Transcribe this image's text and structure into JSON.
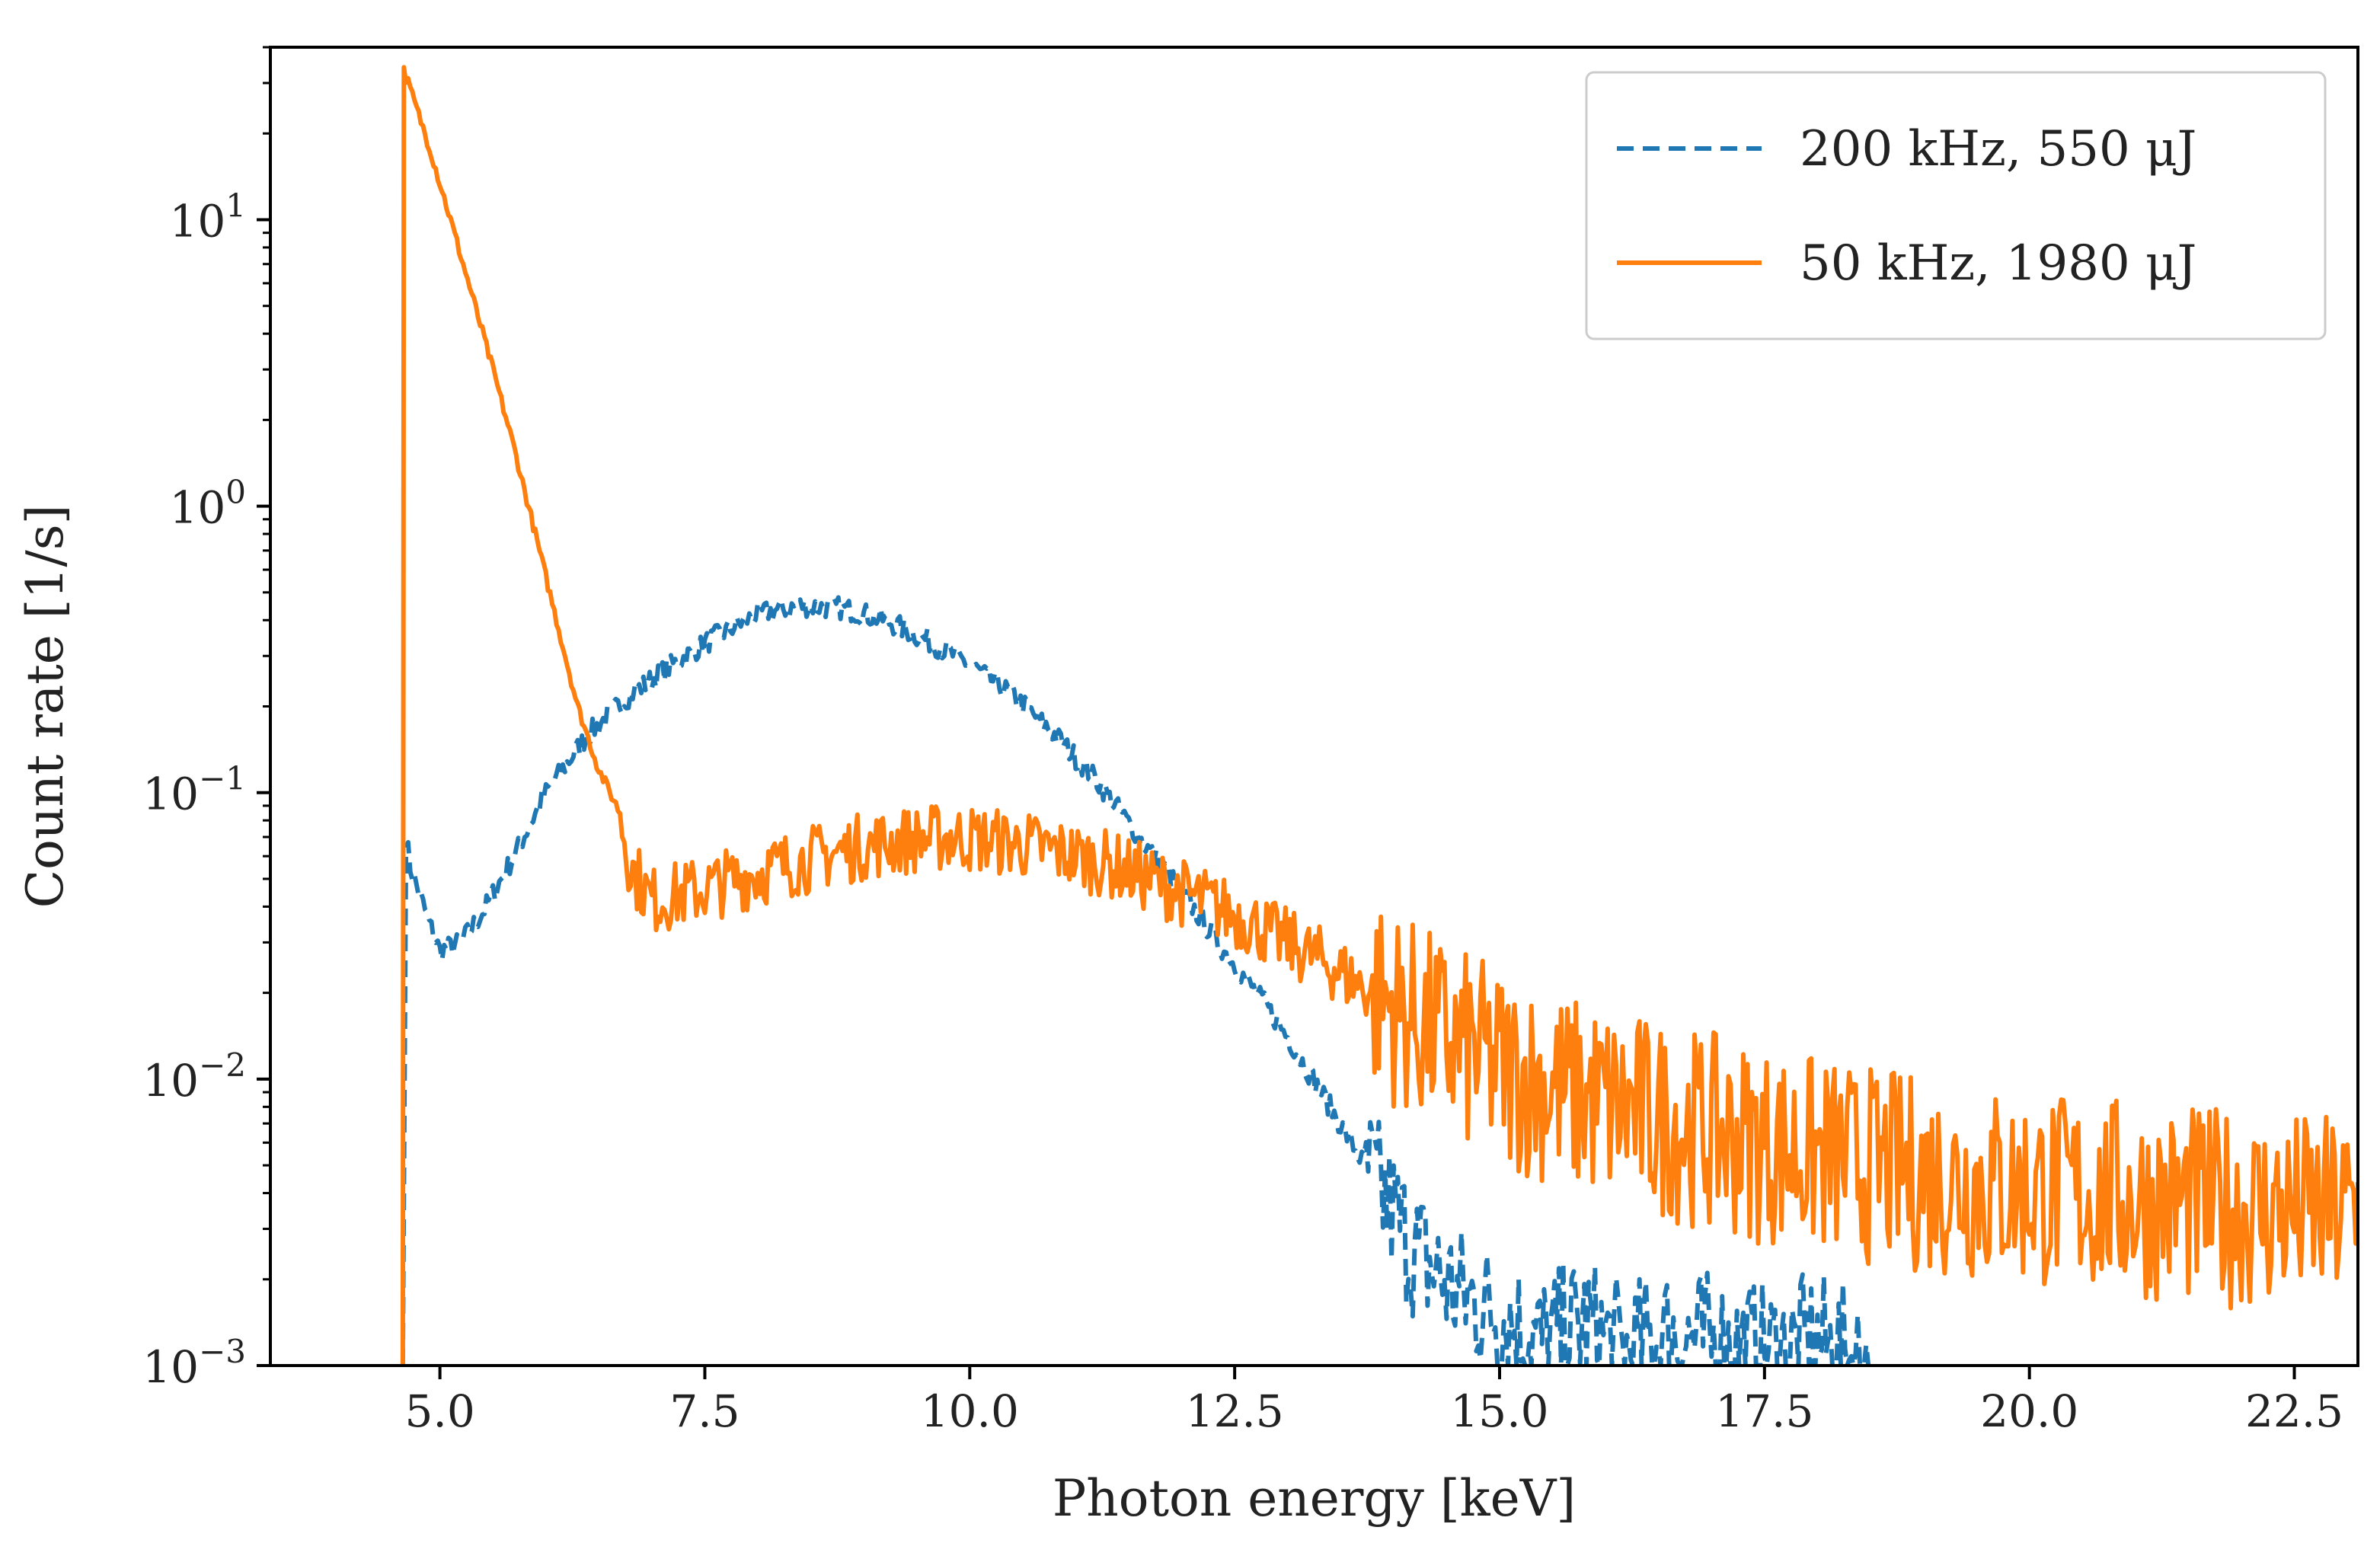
{
  "chart_data": {
    "type": "line",
    "title": "",
    "xlabel": "Photon energy [keV]",
    "ylabel": "Count rate [1/s]",
    "xlim": [
      3.4,
      23.1
    ],
    "ylim": [
      0.001,
      40
    ],
    "yscale": "log",
    "grid": false,
    "legend_position": "top-right",
    "x_ticks": [
      5.0,
      7.5,
      10.0,
      12.5,
      15.0,
      17.5,
      20.0,
      22.5
    ],
    "x_tick_labels": [
      "5.0",
      "7.5",
      "10.0",
      "12.5",
      "15.0",
      "17.5",
      "20.0",
      "22.5"
    ],
    "y_ticks": [
      {
        "value": 0.001,
        "base": "10",
        "exp": "−3"
      },
      {
        "value": 0.01,
        "base": "10",
        "exp": "−2"
      },
      {
        "value": 0.1,
        "base": "10",
        "exp": "−1"
      },
      {
        "value": 1,
        "base": "10",
        "exp": "0"
      },
      {
        "value": 10,
        "base": "10",
        "exp": "1"
      }
    ],
    "series": [
      {
        "name": "200 kHz, 550 μJ",
        "color": "#1f77b4",
        "style": "dashed",
        "x": [
          4.65,
          4.68,
          4.72,
          4.8,
          4.9,
          5.0,
          5.2,
          5.4,
          5.7,
          6.0,
          6.4,
          6.8,
          7.2,
          7.6,
          8.0,
          8.4,
          8.8,
          9.2,
          9.6,
          10.0,
          10.4,
          10.8,
          11.2,
          11.6,
          12.0,
          12.4,
          12.8,
          13.0,
          13.4,
          13.8,
          14.2,
          14.6,
          15.0,
          15.4,
          15.8,
          16.2,
          16.6,
          17.0,
          17.5,
          18.0,
          18.5
        ],
        "y": [
          0.001,
          0.07,
          0.055,
          0.045,
          0.035,
          0.028,
          0.03,
          0.038,
          0.06,
          0.1,
          0.16,
          0.22,
          0.28,
          0.35,
          0.42,
          0.45,
          0.44,
          0.4,
          0.34,
          0.28,
          0.22,
          0.16,
          0.11,
          0.07,
          0.045,
          0.028,
          0.018,
          0.014,
          0.008,
          0.0045,
          0.0025,
          0.0018,
          0.0015,
          0.0012,
          0.0014,
          0.0011,
          0.0013,
          0.0012,
          0.0011,
          0.0012,
          0.001
        ]
      },
      {
        "name": "50 kHz, 1980 μJ",
        "color": "#ff7f0e",
        "style": "solid",
        "x": [
          4.65,
          4.66,
          4.7,
          4.9,
          5.1,
          5.3,
          5.5,
          5.7,
          5.9,
          6.1,
          6.3,
          6.5,
          6.7,
          6.8,
          7.0,
          7.4,
          7.8,
          8.2,
          8.6,
          9.0,
          9.4,
          9.8,
          10.2,
          10.6,
          11.0,
          11.4,
          11.8,
          12.2,
          12.6,
          13.0,
          13.4,
          13.8,
          14.2,
          14.6,
          15.0,
          15.6,
          16.2,
          16.8,
          17.4,
          18.0,
          18.6,
          19.2,
          19.8,
          20.4,
          21.0,
          21.6,
          22.2,
          22.8,
          23.1
        ],
        "y": [
          0.001,
          33,
          30,
          18,
          10,
          5.5,
          3,
          1.6,
          0.8,
          0.4,
          0.2,
          0.12,
          0.085,
          0.055,
          0.042,
          0.045,
          0.05,
          0.055,
          0.06,
          0.065,
          0.068,
          0.07,
          0.068,
          0.065,
          0.06,
          0.055,
          0.048,
          0.042,
          0.036,
          0.03,
          0.025,
          0.02,
          0.016,
          0.013,
          0.011,
          0.009,
          0.0078,
          0.0068,
          0.006,
          0.0054,
          0.0049,
          0.0045,
          0.0042,
          0.004,
          0.0038,
          0.0036,
          0.0035,
          0.0034,
          0.0034
        ]
      }
    ]
  },
  "legend": {
    "entries": [
      "200 kHz, 550 μJ",
      "50 kHz, 1980 μJ"
    ]
  }
}
